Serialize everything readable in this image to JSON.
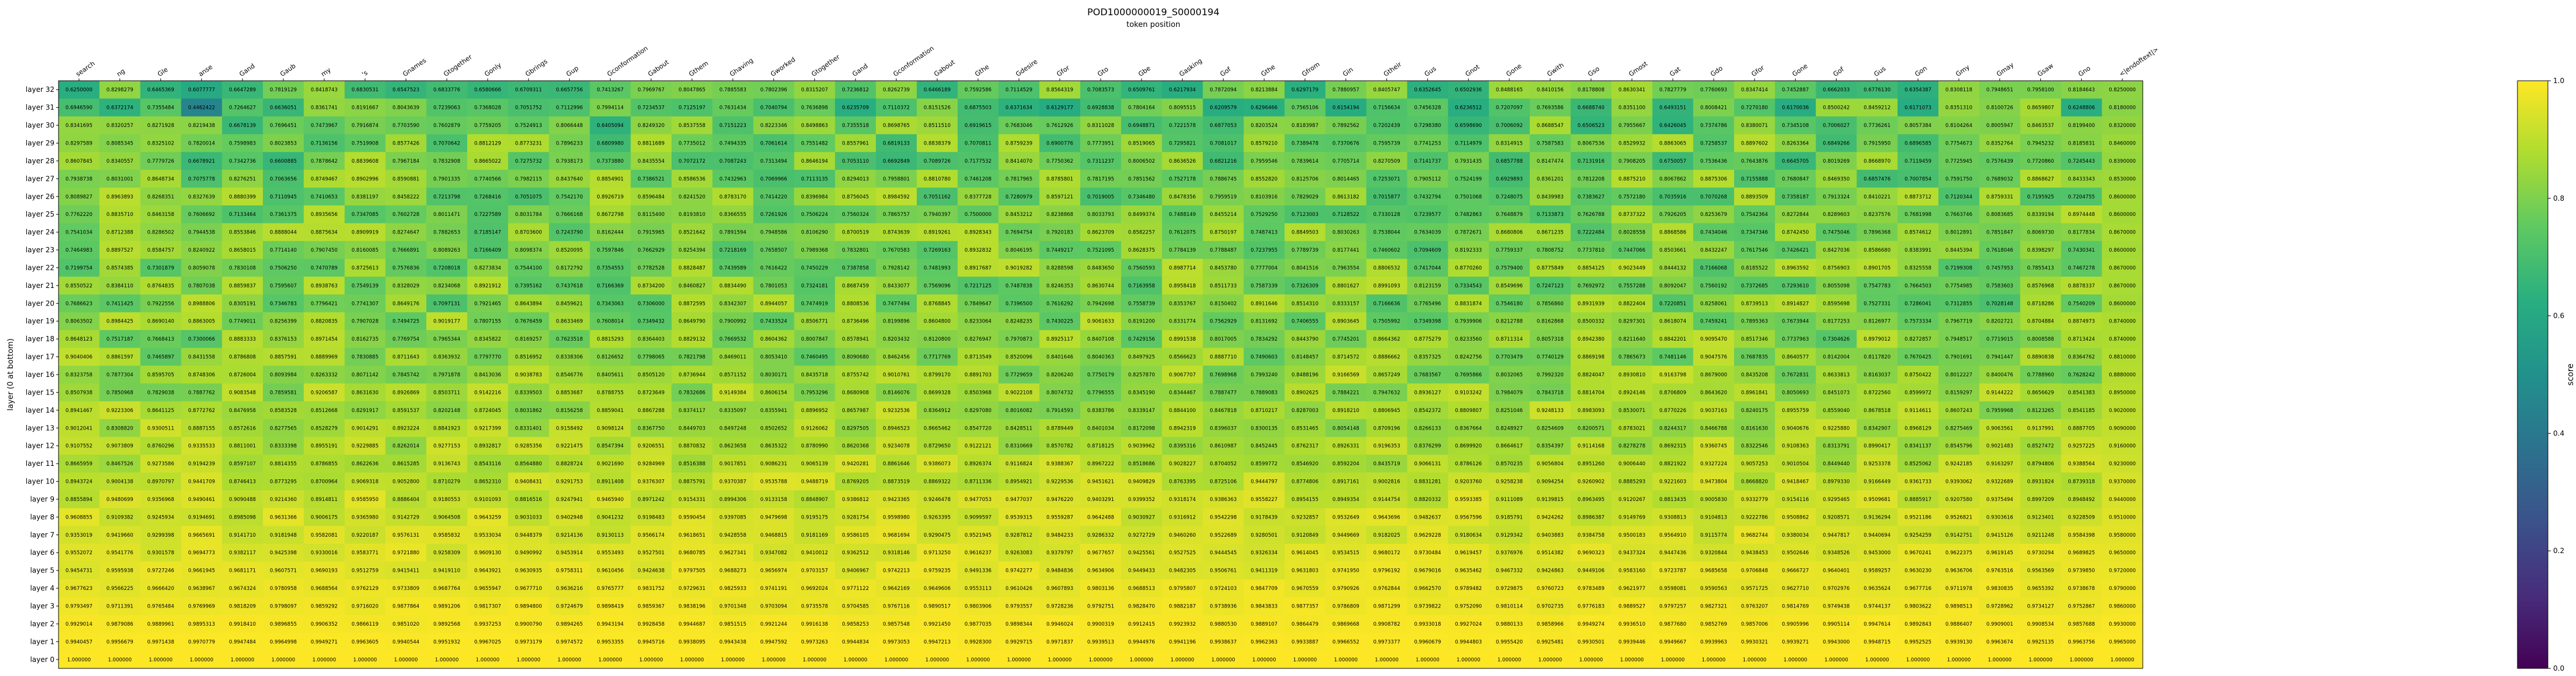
{
  "chart_data": {
    "type": "heatmap",
    "title": "POD1000000019_S0000194",
    "xlabel": "token position",
    "ylabel": "layer (0 at bottom)",
    "colorbar_label": "score",
    "colorbar_ticks": [
      "0.0",
      "0.2",
      "0.4",
      "0.6",
      "0.8",
      "1.0"
    ],
    "value_range": [
      0.0,
      1.0
    ],
    "colormap": "viridis",
    "x_labels": [
      "search",
      "ng",
      "Gle",
      "anse",
      "Gand",
      "Gaub",
      "my",
      "'s",
      "Gnames",
      "Gtogether",
      "Gonly",
      "Gbrings",
      "Gup",
      "Gconformation",
      "Gabout",
      "Gthem",
      "Ghaving",
      "Gworked",
      "Gtogether",
      "Gand",
      "Gconformation",
      "Gabout",
      "Gthe",
      "Gdesire",
      "Gfor",
      "Gto",
      "Gbe",
      "Gasking",
      "Gof",
      "Gthe",
      "Gfrom",
      "Gin",
      "Gtheir",
      "Gus",
      "Gnot",
      "Gone",
      "Gwith",
      "Gso",
      "Gmost",
      "Gat",
      "Gdo",
      "Gfor",
      "Gone",
      "Gof",
      "Gus",
      "Gon",
      "Gmy",
      "Gmay",
      "Gsaw",
      "Gno",
      "<|endoftext|>"
    ],
    "y_labels": [
      "layer 32",
      "layer 31",
      "layer 30",
      "layer 29",
      "layer 28",
      "layer 27",
      "layer 26",
      "layer 25",
      "layer 24",
      "layer 23",
      "layer 22",
      "layer 21",
      "layer 20",
      "layer 19",
      "layer 18",
      "layer 17",
      "layer 16",
      "layer 15",
      "layer 14",
      "layer 13",
      "layer 12",
      "layer 11",
      "layer 10",
      "layer 9",
      "layer 8",
      "layer 7",
      "layer 6",
      "layer 5",
      "layer 4",
      "layer 3",
      "layer 2",
      "layer 1",
      "layer 0"
    ],
    "row_approx_mean": [
      0.75,
      0.74,
      0.76,
      0.78,
      0.77,
      0.79,
      0.8,
      0.8,
      0.81,
      0.8,
      0.81,
      0.81,
      0.8,
      0.82,
      0.82,
      0.83,
      0.84,
      0.85,
      0.86,
      0.87,
      0.88,
      0.89,
      0.91,
      0.92,
      0.93,
      0.94,
      0.95,
      0.96,
      0.97,
      0.98,
      0.99,
      0.995,
      1.0
    ],
    "outliers": [
      {
        "row": 0,
        "col": 3,
        "value": 0.6077777
      },
      {
        "row": 1,
        "col": 3,
        "value": 0.4462422
      },
      {
        "row": 0,
        "col": 27,
        "value": 0.6217934
      }
    ]
  }
}
